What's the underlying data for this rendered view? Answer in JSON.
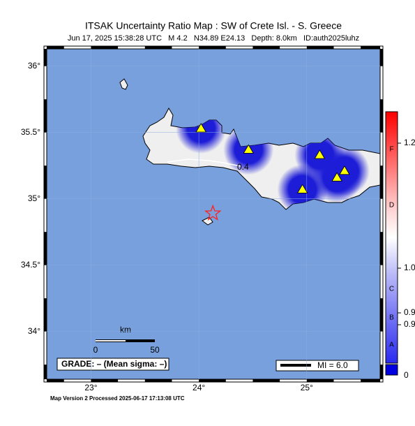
{
  "header": {
    "title": "ITSAK Uncertainty Ratio Map : SW of Crete Isl. - S. Greece",
    "subtitle": "Jun 17, 2025 15:38:28 UTC   M 4.2   N34.89 E24.13   Depth: 8.0km   ID:auth2025luhz"
  },
  "map": {
    "lon_range": [
      22.59,
      25.68
    ],
    "lat_range": [
      33.64,
      36.13
    ],
    "lat_ticks": [
      {
        "value": 36,
        "label": "36°"
      },
      {
        "value": 35.5,
        "label": "35.5°"
      },
      {
        "value": 35,
        "label": "35°"
      },
      {
        "value": 34.5,
        "label": "34.5°"
      },
      {
        "value": 34,
        "label": "34°"
      }
    ],
    "lon_ticks": [
      {
        "value": 23,
        "label": "23°"
      },
      {
        "value": 24,
        "label": "24°"
      },
      {
        "value": 25,
        "label": "25°"
      }
    ],
    "stations": [
      {
        "lon": 24.02,
        "lat": 35.53
      },
      {
        "lon": 24.46,
        "lat": 35.37
      },
      {
        "lon": 25.12,
        "lat": 35.33
      },
      {
        "lon": 25.35,
        "lat": 35.21
      },
      {
        "lon": 25.28,
        "lat": 35.16
      },
      {
        "lon": 24.96,
        "lat": 35.07
      }
    ],
    "epicenter": {
      "lon": 24.13,
      "lat": 34.89
    },
    "contour_label": "0.4",
    "scale": {
      "unit": "km",
      "start": "0",
      "end": "50"
    },
    "grade": "GRADE: – (Mean sigma: –)",
    "mi": "MI = 6.0"
  },
  "colorbar": {
    "ticks": [
      "1.2",
      "1.0",
      "0.9",
      "0.9"
    ],
    "letters": [
      "F",
      "D",
      "C",
      "B",
      "A"
    ],
    "zero": "0"
  },
  "footer": "Map Version 2 Processed 2025-06-17 17:13:08 UTC"
}
